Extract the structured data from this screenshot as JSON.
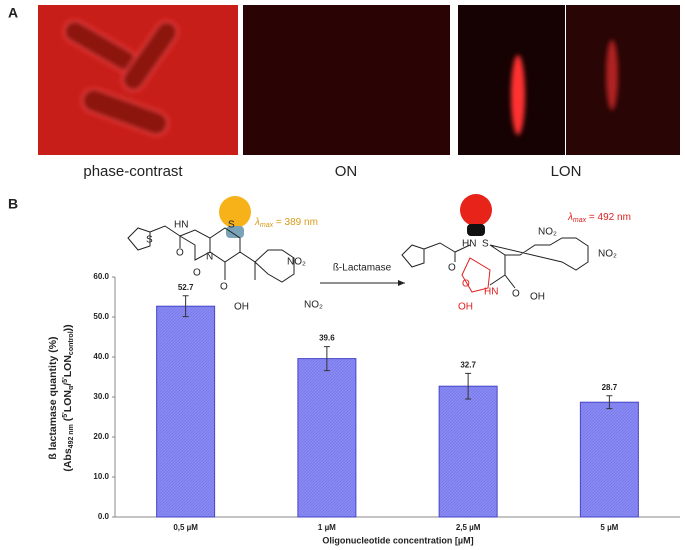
{
  "panel_a": {
    "label": "A",
    "captions": [
      "phase-contrast",
      "ON",
      "LON"
    ]
  },
  "panel_b": {
    "label": "B",
    "enzyme": "ß-Lactamase",
    "lambda_left": [
      "λ",
      "max",
      " = 389 nm"
    ],
    "lambda_right": [
      "λ",
      "max",
      " = 492 nm"
    ],
    "atoms_left": [
      "S",
      "HN",
      "O",
      "S",
      "N",
      "O",
      "O",
      "OH",
      "NO₂",
      "NO₂"
    ],
    "atoms_right": [
      "HN",
      "S",
      "O",
      "HN",
      "O",
      "OH",
      "O",
      "OH",
      "NO₂",
      "NO₂"
    ]
  },
  "chart_data": {
    "type": "bar",
    "xlabel": "Oligonucleotide concentration [µM]",
    "ylabel": [
      "ß lactamase quantity (%)",
      "(Abs",
      "492 nm",
      " (",
      "5'",
      "LON",
      "α",
      "/",
      "control",
      "))"
    ],
    "categories": [
      "0,5 µM",
      "1 µM",
      "2,5 µM",
      "5 µM"
    ],
    "values": [
      52.7,
      39.6,
      32.7,
      28.7
    ],
    "errors": [
      2.6,
      3.0,
      3.2,
      1.6
    ],
    "color": "#8a8af5",
    "ylim": [
      0,
      60
    ],
    "yticks": [
      {
        "value": 0,
        "label": "0.0"
      },
      {
        "value": 10,
        "label": "10.0"
      },
      {
        "value": 20,
        "label": "20.0"
      },
      {
        "value": 30,
        "label": "30.0"
      },
      {
        "value": 40,
        "label": "40.0"
      },
      {
        "value": 50,
        "label": "50.0"
      },
      {
        "value": 60,
        "label": "60.0"
      }
    ]
  }
}
